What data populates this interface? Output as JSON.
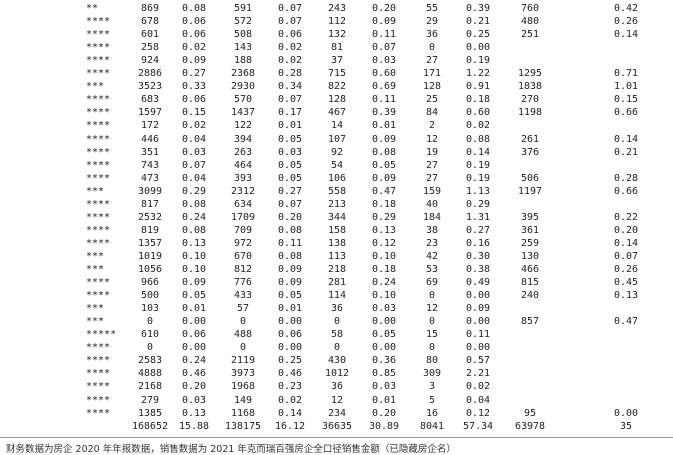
{
  "table": {
    "rows": [
      [
        "**",
        "869",
        "0.08",
        "591",
        "0.07",
        "243",
        "0.20",
        "55",
        "0.39",
        "760",
        "0.42"
      ],
      [
        "****",
        "678",
        "0.06",
        "572",
        "0.07",
        "112",
        "0.09",
        "29",
        "0.21",
        "480",
        "0.26"
      ],
      [
        "****",
        "601",
        "0.06",
        "508",
        "0.06",
        "132",
        "0.11",
        "36",
        "0.25",
        "251",
        "0.14"
      ],
      [
        "****",
        "258",
        "0.02",
        "143",
        "0.02",
        "81",
        "0.07",
        "0",
        "0.00"
      ],
      [
        "****",
        "924",
        "0.09",
        "188",
        "0.02",
        "37",
        "0.03",
        "27",
        "0.19"
      ],
      [
        "****",
        "2886",
        "0.27",
        "2368",
        "0.28",
        "715",
        "0.60",
        "171",
        "1.22",
        "1295",
        "0.71"
      ],
      [
        "***",
        "3523",
        "0.33",
        "2930",
        "0.34",
        "822",
        "0.69",
        "128",
        "0.91",
        "1838",
        "1.01"
      ],
      [
        "****",
        "683",
        "0.06",
        "570",
        "0.07",
        "128",
        "0.11",
        "25",
        "0.18",
        "270",
        "0.15"
      ],
      [
        "****",
        "1597",
        "0.15",
        "1437",
        "0.17",
        "467",
        "0.39",
        "84",
        "0.60",
        "1198",
        "0.66"
      ],
      [
        "****",
        "172",
        "0.02",
        "122",
        "0.01",
        "14",
        "0.01",
        "2",
        "0.02"
      ],
      [
        "****",
        "446",
        "0.04",
        "394",
        "0.05",
        "107",
        "0.09",
        "12",
        "0.08",
        "261",
        "0.14"
      ],
      [
        "****",
        "351",
        "0.03",
        "263",
        "0.03",
        "92",
        "0.08",
        "19",
        "0.14",
        "376",
        "0.21"
      ],
      [
        "****",
        "743",
        "0.07",
        "464",
        "0.05",
        "54",
        "0.05",
        "27",
        "0.19"
      ],
      [
        "****",
        "473",
        "0.04",
        "393",
        "0.05",
        "106",
        "0.09",
        "27",
        "0.19",
        "506",
        "0.28"
      ],
      [
        "***",
        "3099",
        "0.29",
        "2312",
        "0.27",
        "558",
        "0.47",
        "159",
        "1.13",
        "1197",
        "0.66"
      ],
      [
        "****",
        "817",
        "0.08",
        "634",
        "0.07",
        "213",
        "0.18",
        "40",
        "0.29"
      ],
      [
        "****",
        "2532",
        "0.24",
        "1709",
        "0.20",
        "344",
        "0.29",
        "184",
        "1.31",
        "395",
        "0.22"
      ],
      [
        "****",
        "819",
        "0.08",
        "709",
        "0.08",
        "158",
        "0.13",
        "38",
        "0.27",
        "361",
        "0.20"
      ],
      [
        "****",
        "1357",
        "0.13",
        "972",
        "0.11",
        "138",
        "0.12",
        "23",
        "0.16",
        "259",
        "0.14"
      ],
      [
        "***",
        "1019",
        "0.10",
        "670",
        "0.08",
        "113",
        "0.10",
        "42",
        "0.30",
        "130",
        "0.07"
      ],
      [
        "***",
        "1056",
        "0.10",
        "812",
        "0.09",
        "218",
        "0.18",
        "53",
        "0.38",
        "466",
        "0.26"
      ],
      [
        "****",
        "966",
        "0.09",
        "776",
        "0.09",
        "281",
        "0.24",
        "69",
        "0.49",
        "815",
        "0.45"
      ],
      [
        "****",
        "500",
        "0.05",
        "433",
        "0.05",
        "114",
        "0.10",
        "0",
        "0.00",
        "240",
        "0.13"
      ],
      [
        "***",
        "103",
        "0.01",
        "57",
        "0.01",
        "36",
        "0.03",
        "12",
        "0.09"
      ],
      [
        "***",
        "0",
        "0.00",
        "0",
        "0.00",
        "0",
        "0.00",
        "0",
        "0.00",
        "857",
        "0.47"
      ],
      [
        "*****",
        "610",
        "0.06",
        "488",
        "0.06",
        "58",
        "0.05",
        "15",
        "0.11"
      ],
      [
        "****",
        "0",
        "0.00",
        "0",
        "0.00",
        "0",
        "0.00",
        "0",
        "0.00"
      ],
      [
        "****",
        "2583",
        "0.24",
        "2119",
        "0.25",
        "430",
        "0.36",
        "80",
        "0.57"
      ],
      [
        "****",
        "4888",
        "0.46",
        "3973",
        "0.46",
        "1012",
        "0.85",
        "309",
        "2.21"
      ],
      [
        "****",
        "2168",
        "0.20",
        "1968",
        "0.23",
        "36",
        "0.03",
        "3",
        "0.02"
      ],
      [
        "****",
        "279",
        "0.03",
        "149",
        "0.02",
        "12",
        "0.01",
        "5",
        "0.04"
      ],
      [
        "****",
        "1385",
        "0.13",
        "1168",
        "0.14",
        "234",
        "0.20",
        "16",
        "0.12",
        "95",
        "0.00"
      ]
    ],
    "total": [
      null,
      "168652",
      "15.88",
      "138175",
      "16.12",
      "36635",
      "30.89",
      "8041",
      "57.34",
      "63978",
      "35"
    ]
  },
  "footer": "财务数据为房企 2020 年年报数据，销售数据为 2021 年克而瑞百强房企全口径销售金额（已隐藏房企名）"
}
